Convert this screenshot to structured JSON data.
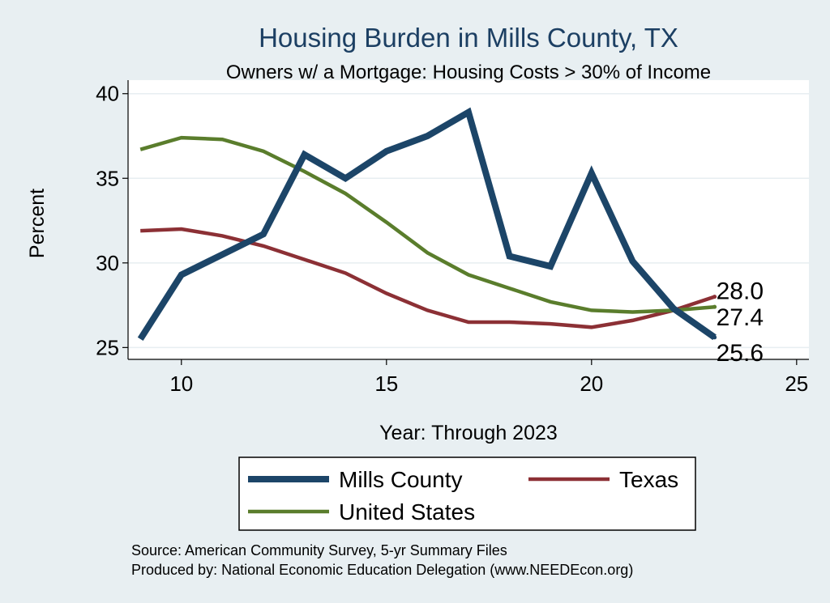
{
  "chart_data": {
    "type": "line",
    "title": "Housing Burden in Mills County, TX",
    "subtitle": "Owners w/ a Mortgage: Housing Costs > 30% of Income",
    "xlabel": "Year: Through 2023",
    "ylabel": "Percent",
    "xlim": [
      8.7,
      25.3
    ],
    "ylim": [
      24.3,
      40.8
    ],
    "xticks": [
      10,
      15,
      20,
      25
    ],
    "yticks": [
      25,
      30,
      35,
      40
    ],
    "grid": true,
    "legend_position": "bottom",
    "series": [
      {
        "name": "Mills County",
        "color": "#1c4568",
        "width": "thick",
        "x": [
          9,
          10,
          11,
          12,
          13,
          14,
          15,
          16,
          17,
          18,
          19,
          20,
          21,
          22,
          23
        ],
        "values": [
          25.5,
          29.3,
          30.5,
          31.7,
          36.4,
          35.0,
          36.6,
          37.5,
          38.9,
          30.4,
          29.8,
          35.3,
          30.1,
          27.3,
          25.6
        ],
        "end_label": "25.6"
      },
      {
        "name": "Texas",
        "color": "#8c3035",
        "width": "medium",
        "x": [
          9,
          10,
          11,
          12,
          13,
          14,
          15,
          16,
          17,
          18,
          19,
          20,
          21,
          22,
          23
        ],
        "values": [
          31.9,
          32.0,
          31.6,
          31.0,
          30.2,
          29.4,
          28.2,
          27.2,
          26.5,
          26.5,
          26.4,
          26.2,
          26.6,
          27.2,
          28.0
        ],
        "end_label": "28.0"
      },
      {
        "name": "United States",
        "color": "#5a7d2c",
        "width": "medium",
        "x": [
          9,
          10,
          11,
          12,
          13,
          14,
          15,
          16,
          17,
          18,
          19,
          20,
          21,
          22,
          23
        ],
        "values": [
          36.7,
          37.4,
          37.3,
          36.6,
          35.4,
          34.1,
          32.4,
          30.6,
          29.3,
          28.5,
          27.7,
          27.2,
          27.1,
          27.2,
          27.4
        ],
        "end_label": "27.4"
      }
    ],
    "source_lines": [
      "Source: American Community Survey, 5-yr Summary Files",
      "Produced by: National Economic Education Delegation (www.NEEDEcon.org)"
    ]
  }
}
